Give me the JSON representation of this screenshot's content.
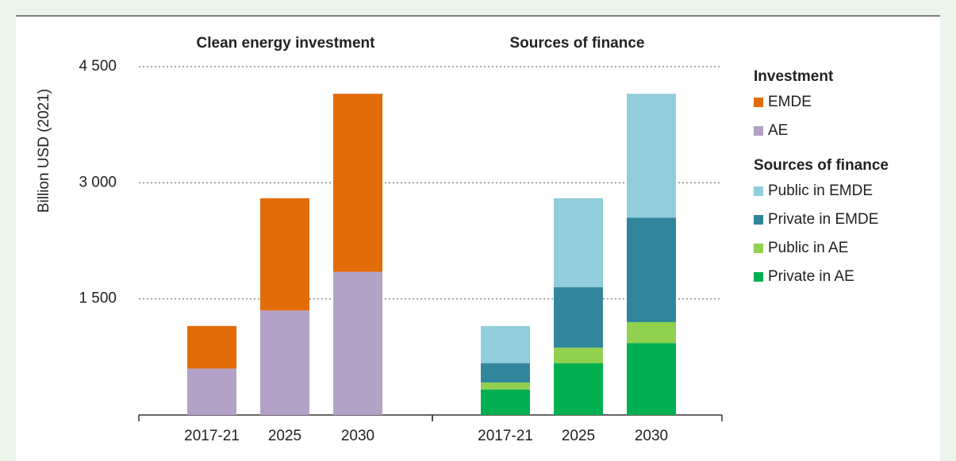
{
  "chart_data": [
    {
      "type": "bar",
      "stacked": true,
      "title": "Clean energy investment",
      "ylabel": "Billion USD (2021)",
      "legend_title": "Investment",
      "categories": [
        "2017-21",
        "2025",
        "2030"
      ],
      "series": [
        {
          "name": "AE",
          "color": "#b3a2c7",
          "values": [
            600,
            1350,
            1850
          ]
        },
        {
          "name": "EMDE",
          "color": "#e36c0a",
          "values": [
            550,
            1450,
            2300
          ]
        }
      ],
      "ylim": [
        0,
        4500
      ],
      "yticks": [
        {
          "value": 1500,
          "label": "1 500"
        },
        {
          "value": 3000,
          "label": "3 000"
        },
        {
          "value": 4500,
          "label": "4 500"
        }
      ],
      "grid": true
    },
    {
      "type": "bar",
      "stacked": true,
      "title": "Sources of finance",
      "legend_title": "Sources of finance",
      "categories": [
        "2017-21",
        "2025",
        "2030"
      ],
      "series": [
        {
          "name": "Private in AE",
          "color": "#00b050",
          "values": [
            330,
            670,
            930
          ]
        },
        {
          "name": "Public in AE",
          "color": "#92d050",
          "values": [
            90,
            200,
            270
          ]
        },
        {
          "name": "Private in EMDE",
          "color": "#31869b",
          "values": [
            250,
            780,
            1350
          ]
        },
        {
          "name": "Public in EMDE",
          "color": "#92cddc",
          "values": [
            480,
            1150,
            1600
          ]
        }
      ],
      "ylim": [
        0,
        4500
      ],
      "yticks": [
        1500,
        3000,
        4500
      ],
      "grid": true
    }
  ]
}
